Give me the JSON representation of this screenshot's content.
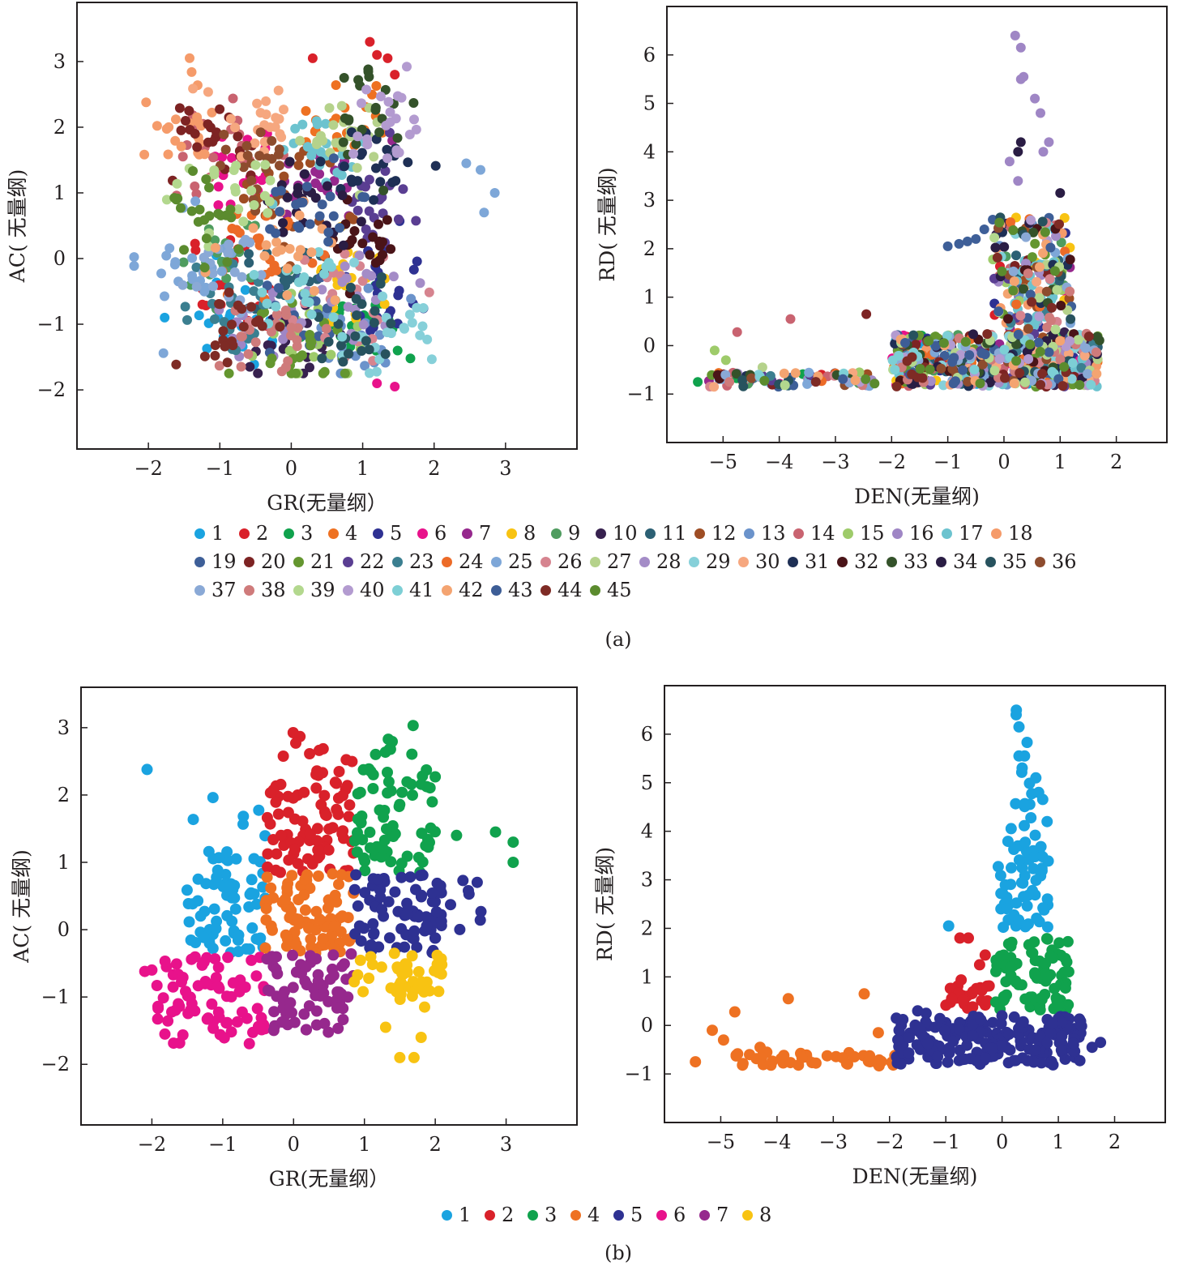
{
  "figure": {
    "panel_a_caption": "(a)",
    "panel_b_caption": "(b)"
  },
  "chart_data": [
    {
      "id": "a-left",
      "type": "scatter",
      "xlabel": "GR(无量纲）",
      "ylabel": "AC( 无量纲)",
      "xlim": [
        -3,
        4
      ],
      "ylim": [
        -2.9,
        3.9
      ],
      "xticks": [
        "−2",
        "−1",
        "0",
        "1",
        "2",
        "3"
      ],
      "yticks": [
        "−2",
        "−1",
        "0",
        "1",
        "2",
        "3"
      ],
      "legend_group": "a",
      "series_ref": "a_gr_ac"
    },
    {
      "id": "a-right",
      "type": "scatter",
      "xlabel": "DEN(无量纲)",
      "ylabel": "RD( 无量纲)",
      "xlim": [
        -6.0,
        2.9
      ],
      "ylim": [
        -2.0,
        7.0
      ],
      "xticks": [
        "−5",
        "−4",
        "−3",
        "−2",
        "−1",
        "0",
        "1",
        "2"
      ],
      "yticks": [
        "−1",
        "0",
        "1",
        "2",
        "3",
        "4",
        "5",
        "6"
      ],
      "legend_group": "a",
      "series_ref": "a_den_rd"
    },
    {
      "id": "b-left",
      "type": "scatter",
      "xlabel": "GR(无量纲）",
      "ylabel": "AC( 无量纲)",
      "xlim": [
        -3,
        4
      ],
      "ylim": [
        -2.9,
        3.6
      ],
      "xticks": [
        "−2",
        "−1",
        "0",
        "1",
        "2",
        "3"
      ],
      "yticks": [
        "−2",
        "−1",
        "0",
        "1",
        "2",
        "3"
      ],
      "legend_group": "b",
      "series_ref": "b_gr_ac"
    },
    {
      "id": "b-right",
      "type": "scatter",
      "xlabel": "DEN(无量纲)",
      "ylabel": "RD( 无量纲)",
      "xlim": [
        -6.0,
        2.9
      ],
      "ylim": [
        -2.0,
        7.0
      ],
      "xticks": [
        "−5",
        "−4",
        "−3",
        "−2",
        "−1",
        "0",
        "1",
        "2"
      ],
      "yticks": [
        "−1",
        "0",
        "1",
        "2",
        "3",
        "4",
        "5",
        "6"
      ],
      "legend_group": "b",
      "series_ref": "b_den_rd"
    }
  ],
  "legend_a": {
    "rows": [
      [
        1,
        2,
        3,
        4,
        5,
        6,
        7,
        8,
        9,
        10,
        11,
        12,
        13,
        14,
        15,
        16,
        17,
        18
      ],
      [
        19,
        20,
        21,
        22,
        23,
        24,
        25,
        26,
        27,
        28,
        29,
        30,
        31,
        32,
        33,
        34,
        35,
        36
      ],
      [
        37,
        38,
        39,
        40,
        41,
        42,
        43,
        44,
        45
      ]
    ],
    "labels": [
      "1",
      "2",
      "3",
      "4",
      "5",
      "6",
      "7",
      "8",
      "9",
      "10",
      "11",
      "12",
      "13",
      "14",
      "15",
      "16",
      "17",
      "18",
      "19",
      "20",
      "21",
      "22",
      "23",
      "24",
      "25",
      "26",
      "27",
      "28",
      "29",
      "30",
      "31",
      "32",
      "33",
      "34",
      "35",
      "36",
      "37",
      "38",
      "39",
      "40",
      "41",
      "42",
      "43",
      "44",
      "45"
    ],
    "colors": [
      "#1aa3e0",
      "#d9212a",
      "#10a24d",
      "#ee7122",
      "#2e3192",
      "#e8128b",
      "#96288d",
      "#f8c312",
      "#4f9c5f",
      "#37214f",
      "#2c6074",
      "#9e4d24",
      "#6b93cb",
      "#c96370",
      "#9ecb6a",
      "#9f86c5",
      "#6cc3cf",
      "#f59b6a",
      "#3e5f98",
      "#7d2323",
      "#64962f",
      "#5a3e92",
      "#3b7f90",
      "#ec6b28",
      "#7ea7d8",
      "#d6848f",
      "#b5d28b",
      "#a48cc7",
      "#86d0d9",
      "#f6a77f",
      "#1e2f55",
      "#4a1418",
      "#34522a",
      "#2a1d44",
      "#27525e",
      "#8d4c2e",
      "#8aa9d6",
      "#cf7b7b",
      "#b3d88e",
      "#b39bd0",
      "#7dcfd5",
      "#f4a471",
      "#3d5d96",
      "#7e2b25",
      "#5b8b2e"
    ]
  },
  "legend_b": {
    "labels": [
      "1",
      "2",
      "3",
      "4",
      "5",
      "6",
      "7",
      "8"
    ],
    "colors": [
      "#1aa3e0",
      "#d9212a",
      "#10a24d",
      "#ee7122",
      "#2e3192",
      "#e8128b",
      "#96288d",
      "#f8c312"
    ]
  }
}
